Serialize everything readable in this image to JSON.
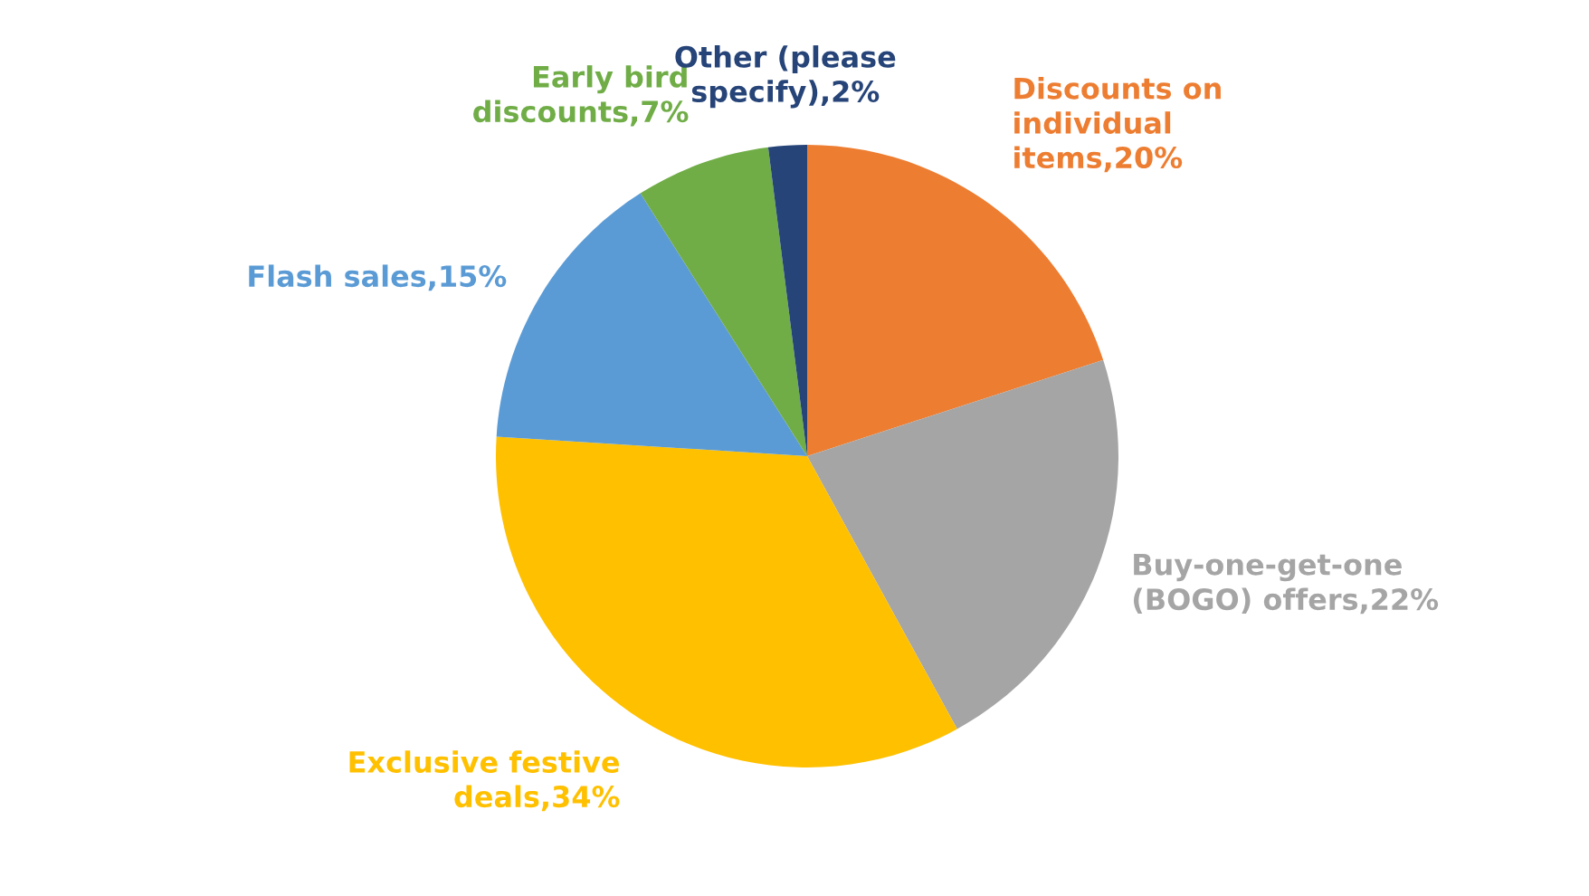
{
  "chart_data": {
    "type": "pie",
    "categories": [
      "Discounts on\nindividual\nitems,20%",
      "Buy-one-get-one\n(BOGO) offers,22%",
      "Exclusive festive\ndeals,34%",
      "Flash sales,15%",
      "Early bird\ndiscounts,7%",
      "Other (please\nspecify),2%"
    ],
    "values": [
      20,
      22,
      34,
      15,
      7,
      2
    ],
    "colors": [
      "#ed7d31",
      "#a5a5a5",
      "#ffc000",
      "#5b9bd5",
      "#70ad47",
      "#264478"
    ],
    "legend": false
  }
}
